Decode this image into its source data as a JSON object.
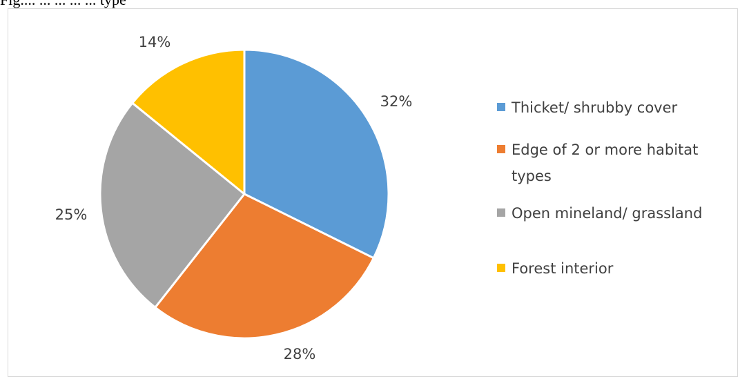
{
  "caption": "Fig.... ...    ... ... ... type",
  "chart_data": {
    "type": "pie",
    "title": "",
    "start_angle_deg": 0,
    "direction": "clockwise",
    "legend_position": "right",
    "slices": [
      {
        "label": "Thicket/ shrubby cover",
        "value": 32,
        "display": "32%",
        "color": "#5b9bd5"
      },
      {
        "label": "Edge of 2 or more habitat types",
        "value": 28,
        "display": "28%",
        "color": "#ed7d31"
      },
      {
        "label": "Open mineland/ grassland",
        "value": 25,
        "display": "25%",
        "color": "#a5a5a5"
      },
      {
        "label": "Forest interior",
        "value": 14,
        "display": "14%",
        "color": "#ffc000"
      }
    ],
    "legend": [
      {
        "lines": [
          "Thicket/ shrubby cover"
        ],
        "color": "#5b9bd5"
      },
      {
        "lines": [
          "Edge of 2 or more habitat",
          "types"
        ],
        "color": "#ed7d31"
      },
      {
        "lines": [
          "Open mineland/ grassland"
        ],
        "color": "#a5a5a5"
      },
      {
        "lines": [
          "Forest interior"
        ],
        "color": "#ffc000"
      }
    ]
  }
}
